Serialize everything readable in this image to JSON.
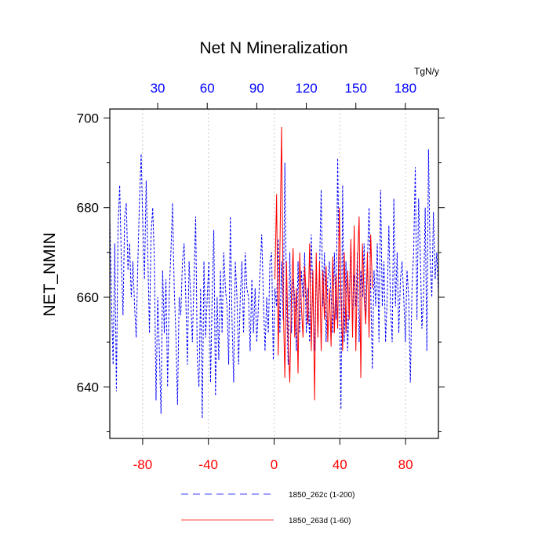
{
  "chart_data": {
    "type": "line",
    "title": "Net N Mineralization",
    "ylabel": "NET_NMIN",
    "units_label": "TgN/y",
    "xlim_bottom": [
      -100,
      100
    ],
    "xlim_top": [
      1,
      200
    ],
    "ylim": [
      628.5,
      702
    ],
    "bottom_ticks": [
      -80,
      -40,
      0,
      40,
      80
    ],
    "bottom_tick_labels": [
      "-80",
      "-40",
      "0",
      "40",
      "80"
    ],
    "top_ticks": [
      30,
      60,
      90,
      120,
      150,
      180
    ],
    "top_tick_labels": [
      "30",
      "60",
      "90",
      "120",
      "150",
      "180"
    ],
    "y_ticks": [
      640,
      660,
      680,
      700
    ],
    "y_tick_labels": [
      "640",
      "660",
      "680",
      "700"
    ],
    "y_minor_ticks": [
      630,
      650,
      670,
      690
    ],
    "x_grid": [
      -80,
      -40,
      0,
      40,
      80
    ],
    "colors": {
      "series1": "#0000ff",
      "series2": "#ff0000",
      "bottom_axis": "#ff0000",
      "top_axis": "#0000ff",
      "grid": "#bbbbbb",
      "frame": "#000000"
    },
    "series": [
      {
        "name": "1850_262c (1-200)",
        "x_axis": "top",
        "style": "dashed",
        "x_start": 1,
        "values": [
          678,
          660,
          645,
          672,
          639,
          676,
          685,
          668,
          656,
          678,
          681,
          666,
          672,
          660,
          668,
          658,
          651,
          668,
          682,
          692,
          676,
          664,
          686,
          670,
          652,
          674,
          680,
          668,
          637,
          660,
          648,
          634,
          666,
          652,
          664,
          640,
          661,
          670,
          681,
          662,
          652,
          636,
          660,
          656,
          668,
          672,
          660,
          645,
          668,
          660,
          650,
          664,
          678,
          646,
          640,
          662,
          633,
          668,
          651,
          660,
          668,
          641,
          660,
          675,
          638,
          660,
          646,
          666,
          652,
          670,
          662,
          658,
          645,
          678,
          655,
          641,
          668,
          660,
          645,
          660,
          668,
          652,
          670,
          662,
          660,
          648,
          664,
          652,
          662,
          650,
          658,
          666,
          674,
          660,
          648,
          660,
          652,
          668,
          670,
          646,
          662,
          658,
          673,
          652,
          668,
          655,
          690,
          660,
          645,
          670,
          652,
          664,
          660,
          648,
          668,
          652,
          666,
          660,
          670,
          652,
          662,
          650,
          674,
          660,
          648,
          668,
          652,
          666,
          684,
          658,
          670,
          650,
          664,
          668,
          660,
          652,
          670,
          655,
          691,
          662,
          635,
          685,
          650,
          668,
          648,
          660,
          672,
          654,
          665,
          658,
          670,
          650,
          666,
          660,
          672,
          654,
          668,
          680,
          662,
          644,
          666,
          658,
          672,
          650,
          684,
          658,
          668,
          650,
          660,
          676,
          658,
          650,
          682,
          658,
          670,
          652,
          664,
          668,
          660,
          650,
          666,
          660,
          641,
          662,
          670,
          689,
          655,
          682,
          670,
          653,
          660,
          680,
          648,
          693,
          668,
          660,
          679,
          664,
          670,
          661
        ]
      },
      {
        "name": "1850_263d (1-60)",
        "x_axis": "top",
        "style": "solid",
        "x_start": 101,
        "values": [
          664,
          683,
          647,
          670,
          698,
          660,
          642,
          668,
          650,
          641,
          660,
          671,
          651,
          662,
          643,
          670,
          658,
          651,
          667,
          660,
          654,
          672,
          648,
          666,
          637,
          670,
          651,
          668,
          648,
          666,
          655,
          667,
          650,
          662,
          649,
          669,
          652,
          665,
          653,
          680,
          660,
          648,
          670,
          652,
          666,
          655,
          673,
          651,
          676,
          648,
          668,
          678,
          642,
          672,
          660,
          654,
          670,
          651,
          674,
          662
        ]
      }
    ],
    "legend": {
      "placement": "bottom-center",
      "entries": [
        "1850_262c (1-200)",
        "1850_263d (1-60)"
      ]
    }
  }
}
